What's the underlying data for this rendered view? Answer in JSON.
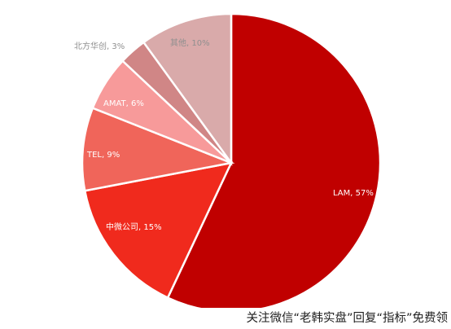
{
  "chart_data": {
    "type": "pie",
    "start_angle_deg": 0,
    "direction": "clockwise",
    "slices": [
      {
        "label": "LAM",
        "value": 57,
        "display": "LAM, 57%",
        "color": "#c00000"
      },
      {
        "label": "中微公司",
        "value": 15,
        "display": "中微公司, 15%",
        "color": "#f02a1d"
      },
      {
        "label": "TEL",
        "value": 9,
        "display": "TEL, 9%",
        "color": "#f0655a"
      },
      {
        "label": "AMAT",
        "value": 6,
        "display": "AMAT, 6%",
        "color": "#f79a9a"
      },
      {
        "label": "北方华创",
        "value": 3,
        "display": "北方华创, 3%",
        "color": "#d08686"
      },
      {
        "label": "其他",
        "value": 10,
        "display": "其他, 10%",
        "color": "#d9aaaa"
      }
    ]
  },
  "watermark": {
    "text": "关注微信“老韩实盘”回复“指标”免费领"
  }
}
